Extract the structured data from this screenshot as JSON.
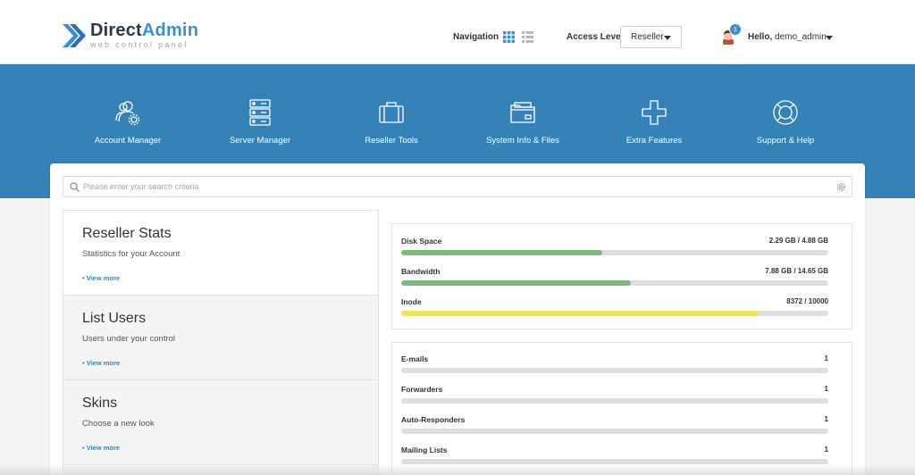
{
  "brand": {
    "name_part1": "Direct",
    "name_part2": "Admin",
    "tagline": "web control panel"
  },
  "header": {
    "navigation_label": "Navigation",
    "access_level_label": "Access Level",
    "access_level_value": "Reseller",
    "notification_count": "1",
    "greeting": "Hello,",
    "username": "demo_admin"
  },
  "hero": {
    "items": [
      {
        "label": "Account Manager",
        "icon": "users-gear-icon"
      },
      {
        "label": "Server Manager",
        "icon": "server-icon"
      },
      {
        "label": "Reseller Tools",
        "icon": "toolbox-icon"
      },
      {
        "label": "System Info & Files",
        "icon": "folder-icon"
      },
      {
        "label": "Extra Features",
        "icon": "plus-icon"
      },
      {
        "label": "Support & Help",
        "icon": "lifebuoy-icon"
      }
    ]
  },
  "search": {
    "placeholder": "Please enter your search criteria"
  },
  "panels": [
    {
      "title": "Reseller Stats",
      "desc": "Statistics for your Account",
      "link": "• View more"
    },
    {
      "title": "List Users",
      "desc": "Users under your control",
      "link": "• View more"
    },
    {
      "title": "Skins",
      "desc": "Choose a new look",
      "link": "• View more"
    }
  ],
  "usage": [
    {
      "label": "Disk Space",
      "value": "2.29 GB / 4.88 GB",
      "fraction": 0.47,
      "color": "#7dbb7b"
    },
    {
      "label": "Bandwidth",
      "value": "7.88 GB / 14.65 GB",
      "fraction": 0.538,
      "color": "#7dbb7b"
    },
    {
      "label": "Inode",
      "value": "8372 / 10000",
      "fraction": 0.837,
      "color": "#eee84c"
    }
  ],
  "counts": [
    {
      "label": "E-mails",
      "value": "1"
    },
    {
      "label": "Forwarders",
      "value": "1"
    },
    {
      "label": "Auto-Responders",
      "value": "1"
    },
    {
      "label": "Mailing Lists",
      "value": "1"
    }
  ],
  "colors": {
    "primary": "#3583b6",
    "accent": "#3a8fd6",
    "green_bar": "#7dbb7b",
    "yellow_bar": "#eee84c"
  }
}
